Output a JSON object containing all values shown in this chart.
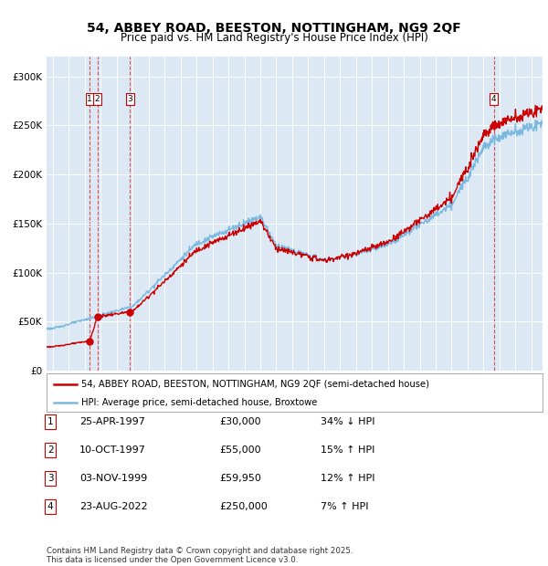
{
  "title_line1": "54, ABBEY ROAD, BEESTON, NOTTINGHAM, NG9 2QF",
  "title_line2": "Price paid vs. HM Land Registry's House Price Index (HPI)",
  "transactions": [
    {
      "id": 1,
      "date_num": 1997.31,
      "price": 30000,
      "label": "25-APR-1997",
      "price_str": "£30,000",
      "pct": "34% ↓ HPI"
    },
    {
      "id": 2,
      "date_num": 1997.78,
      "price": 55000,
      "label": "10-OCT-1997",
      "price_str": "£55,000",
      "pct": "15% ↑ HPI"
    },
    {
      "id": 3,
      "date_num": 1999.84,
      "price": 59950,
      "label": "03-NOV-1999",
      "price_str": "£59,950",
      "pct": "12% ↑ HPI"
    },
    {
      "id": 4,
      "date_num": 2022.64,
      "price": 250000,
      "label": "23-AUG-2022",
      "price_str": "£250,000",
      "pct": "7% ↑ HPI"
    }
  ],
  "legend_red": "54, ABBEY ROAD, BEESTON, NOTTINGHAM, NG9 2QF (semi-detached house)",
  "legend_blue": "HPI: Average price, semi-detached house, Broxtowe",
  "footer": "Contains HM Land Registry data © Crown copyright and database right 2025.\nThis data is licensed under the Open Government Licence v3.0.",
  "ylim": [
    0,
    320000
  ],
  "xlim_start": 1994.6,
  "xlim_end": 2025.7,
  "bg_color": "#dce9f5",
  "red_color": "#cc0000",
  "blue_color": "#7ab8e0",
  "grid_color": "#ffffff",
  "title_fontsize": 10,
  "subtitle_fontsize": 8.5
}
